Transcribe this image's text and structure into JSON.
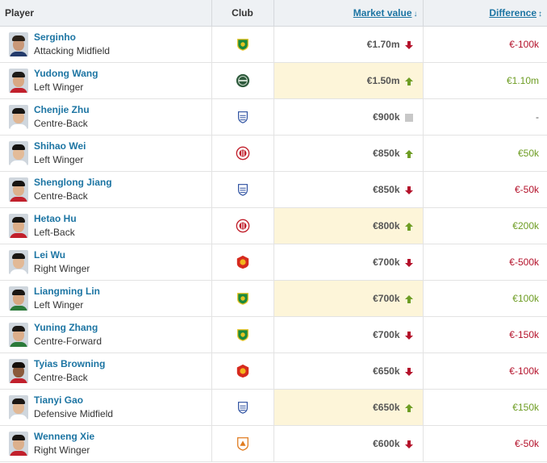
{
  "headers": {
    "player": "Player",
    "club": "Club",
    "market_value": "Market value",
    "difference": "Difference"
  },
  "colors": {
    "link": "#1d75a3",
    "negative": "#b4122b",
    "positive": "#6e9d24",
    "highlight": "#fdf5d9"
  },
  "rows": [
    {
      "name": "Serginho",
      "position": "Attacking Midfield",
      "club_icon": "beijing-guoan-crest",
      "value": "€1.70m",
      "trend": "down",
      "diff": "€-100k",
      "diff_sign": "neg",
      "highlight": false
    },
    {
      "name": "Yudong Wang",
      "position": "Left Winger",
      "club_icon": "zhejiang-crest",
      "value": "€1.50m",
      "trend": "up",
      "diff": "€1.10m",
      "diff_sign": "pos",
      "highlight": true
    },
    {
      "name": "Chenjie Zhu",
      "position": "Centre-Back",
      "club_icon": "shanghai-shenhua-crest",
      "value": "€900k",
      "trend": "same",
      "diff": "-",
      "diff_sign": "neu",
      "highlight": false
    },
    {
      "name": "Shihao Wei",
      "position": "Left Winger",
      "club_icon": "chengdu-rongcheng-crest",
      "value": "€850k",
      "trend": "up",
      "diff": "€50k",
      "diff_sign": "pos",
      "highlight": false
    },
    {
      "name": "Shenglong Jiang",
      "position": "Centre-Back",
      "club_icon": "shanghai-shenhua-crest",
      "value": "€850k",
      "trend": "down",
      "diff": "€-50k",
      "diff_sign": "neg",
      "highlight": false
    },
    {
      "name": "Hetao Hu",
      "position": "Left-Back",
      "club_icon": "chengdu-rongcheng-crest",
      "value": "€800k",
      "trend": "up",
      "diff": "€200k",
      "diff_sign": "pos",
      "highlight": true
    },
    {
      "name": "Lei Wu",
      "position": "Right Winger",
      "club_icon": "shanghai-port-crest",
      "value": "€700k",
      "trend": "down",
      "diff": "€-500k",
      "diff_sign": "neg",
      "highlight": false
    },
    {
      "name": "Liangming Lin",
      "position": "Left Winger",
      "club_icon": "beijing-guoan-crest",
      "value": "€700k",
      "trend": "up",
      "diff": "€100k",
      "diff_sign": "pos",
      "highlight": true
    },
    {
      "name": "Yuning Zhang",
      "position": "Centre-Forward",
      "club_icon": "beijing-guoan-crest",
      "value": "€700k",
      "trend": "down",
      "diff": "€-150k",
      "diff_sign": "neg",
      "highlight": false
    },
    {
      "name": "Tyias Browning",
      "position": "Centre-Back",
      "club_icon": "shanghai-port-crest",
      "value": "€650k",
      "trend": "down",
      "diff": "€-100k",
      "diff_sign": "neg",
      "highlight": false
    },
    {
      "name": "Tianyi Gao",
      "position": "Defensive Midfield",
      "club_icon": "shanghai-shenhua-crest",
      "value": "€650k",
      "trend": "up",
      "diff": "€150k",
      "diff_sign": "pos",
      "highlight": true
    },
    {
      "name": "Wenneng Xie",
      "position": "Right Winger",
      "club_icon": "shandong-taishan-crest",
      "value": "€600k",
      "trend": "down",
      "diff": "€-50k",
      "diff_sign": "neg",
      "highlight": false
    }
  ]
}
